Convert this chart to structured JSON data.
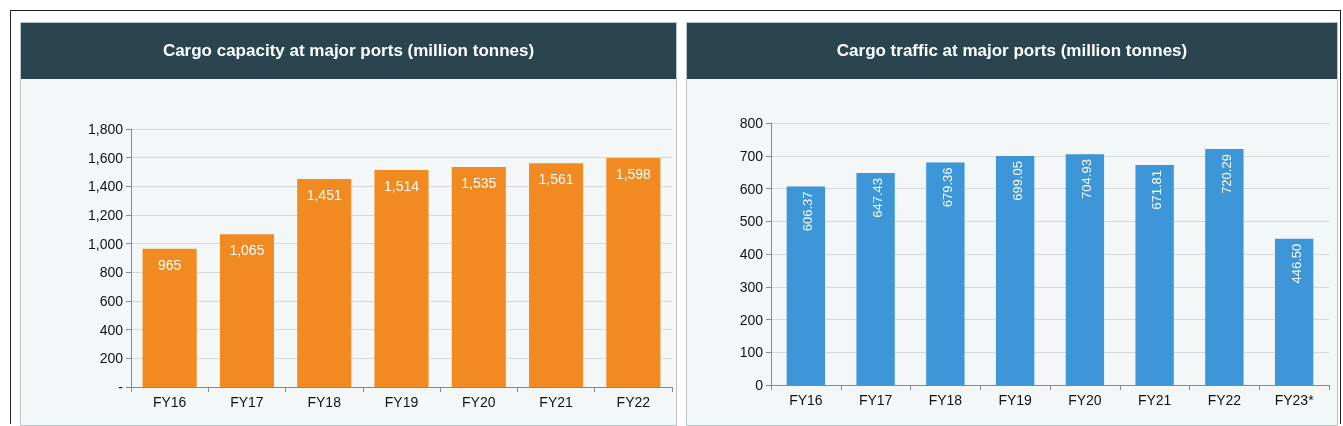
{
  "chart_data": [
    {
      "type": "bar",
      "title": "Cargo capacity at major ports (million tonnes)",
      "categories": [
        "FY16",
        "FY17",
        "FY18",
        "FY19",
        "FY20",
        "FY21",
        "FY22"
      ],
      "series": [
        {
          "color": "#f28a22",
          "values": [
            965,
            1065,
            1451,
            1514,
            1535,
            1561,
            1598
          ],
          "value_labels": [
            "965",
            "1,065",
            "1,451",
            "1,514",
            "1,535",
            "1,561",
            "1,598"
          ]
        }
      ],
      "ylim": [
        0,
        1800
      ],
      "yticks": [
        {
          "value": 0,
          "label": "-"
        },
        200,
        400,
        600,
        800,
        {
          "value": 1000,
          "label": "1,000"
        },
        {
          "value": 1200,
          "label": "1,200"
        },
        {
          "value": 1400,
          "label": "1,400"
        },
        {
          "value": 1600,
          "label": "1,600"
        },
        {
          "value": 1800,
          "label": "1,800"
        }
      ],
      "grid": "y"
    },
    {
      "type": "bar",
      "title": "Cargo traffic at major ports (million tonnes)",
      "categories": [
        "FY16",
        "FY17",
        "FY18",
        "FY19",
        "FY20",
        "FY21",
        "FY22",
        "FY23*"
      ],
      "series": [
        {
          "color": "#3c96d8",
          "values": [
            606.37,
            647.43,
            679.36,
            699.05,
            704.93,
            671.81,
            720.29,
            446.5
          ],
          "value_labels": [
            "606.37",
            "647.43",
            "679.36",
            "699.05",
            "704.93",
            "671.81",
            "720.29",
            "446.50"
          ]
        }
      ],
      "ylim": [
        0,
        800
      ],
      "yticks": [
        0,
        100,
        200,
        300,
        400,
        500,
        600,
        700,
        800
      ],
      "grid": "y"
    }
  ]
}
